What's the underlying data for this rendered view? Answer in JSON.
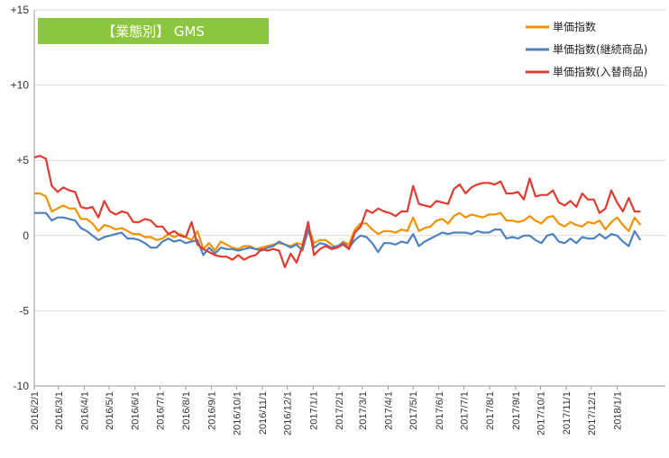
{
  "chart_data": {
    "type": "line",
    "title": "【業態別】 GMS",
    "xlabel": "",
    "ylabel": "",
    "ylim": [
      -10,
      15
    ],
    "yticks": [
      {
        "value": 15,
        "label": "+15"
      },
      {
        "value": 10,
        "label": "+10"
      },
      {
        "value": 5,
        "label": "+5"
      },
      {
        "value": 0,
        "label": "0"
      },
      {
        "value": -5,
        "label": "-5"
      },
      {
        "value": -10,
        "label": "-10"
      }
    ],
    "xlim": [
      "2016-02-01",
      "2018-02-28"
    ],
    "x_tick_labels": [
      "2016/2/1",
      "2016/3/1",
      "2016/4/1",
      "2016/5/1",
      "2016/6/1",
      "2016/7/1",
      "2016/8/1",
      "2016/9/1",
      "2016/10/1",
      "2016/11/1",
      "2016/12/1",
      "2017/1/1",
      "2017/2/1",
      "2017/3/1",
      "2017/4/1",
      "2017/5/1",
      "2017/6/1",
      "2017/7/1",
      "2017/8/1",
      "2017/9/1",
      "2017/10/1",
      "2017/11/1",
      "2017/12/1",
      "2018/1/1"
    ],
    "grid": "horizontal",
    "legend": "top-right",
    "series_start": "2016-02-01",
    "series_interval": "weekly",
    "series": [
      {
        "name": "単価指数",
        "color": "#F39200",
        "values": [
          2.8,
          2.8,
          2.6,
          1.6,
          1.8,
          2.0,
          1.8,
          1.8,
          1.1,
          1.1,
          0.8,
          0.3,
          0.7,
          0.6,
          0.4,
          0.5,
          0.3,
          0.1,
          0.1,
          -0.1,
          -0.1,
          -0.3,
          -0.2,
          0.1,
          -0.1,
          0.1,
          -0.1,
          -0.3,
          0.3,
          -0.9,
          -0.5,
          -1.0,
          -0.4,
          -0.6,
          -0.8,
          -0.9,
          -0.7,
          -0.7,
          -0.9,
          -0.8,
          -0.7,
          -0.6,
          -0.5,
          -0.6,
          -0.7,
          -0.5,
          -0.6,
          0.6,
          -0.5,
          -0.3,
          -0.3,
          -0.6,
          -0.8,
          -0.4,
          -0.6,
          0.4,
          0.8,
          0.8,
          0.4,
          0.1,
          0.3,
          0.3,
          0.2,
          0.4,
          0.3,
          1.2,
          0.3,
          0.5,
          0.6,
          1.0,
          1.1,
          0.8,
          1.3,
          1.5,
          1.2,
          1.4,
          1.3,
          1.2,
          1.4,
          1.4,
          1.5,
          1.0,
          1.0,
          0.9,
          1.0,
          1.3,
          1.0,
          0.8,
          1.2,
          1.3,
          0.8,
          0.6,
          0.9,
          0.7,
          0.6,
          0.9,
          0.8,
          1.0,
          0.4,
          0.9,
          1.2,
          0.7,
          0.3,
          1.2,
          0.7
        ]
      },
      {
        "name": "単価指数(継続商品)",
        "color": "#4F81BD",
        "values": [
          1.5,
          1.5,
          1.5,
          1.0,
          1.2,
          1.2,
          1.1,
          1.0,
          0.5,
          0.3,
          0.0,
          -0.3,
          -0.1,
          0.0,
          0.1,
          0.2,
          -0.2,
          -0.2,
          -0.3,
          -0.5,
          -0.8,
          -0.8,
          -0.4,
          -0.2,
          -0.4,
          -0.3,
          -0.5,
          -0.4,
          -0.3,
          -1.3,
          -0.8,
          -1.2,
          -0.8,
          -0.9,
          -0.9,
          -1.0,
          -0.9,
          -0.8,
          -0.9,
          -1.0,
          -0.8,
          -0.7,
          -0.4,
          -0.6,
          -0.8,
          -0.6,
          -1.0,
          0.4,
          -0.8,
          -0.5,
          -0.6,
          -0.8,
          -0.7,
          -0.5,
          -0.8,
          -0.3,
          0.0,
          -0.1,
          -0.5,
          -1.1,
          -0.5,
          -0.5,
          -0.6,
          -0.4,
          -0.5,
          0.1,
          -0.7,
          -0.4,
          -0.2,
          0.0,
          0.2,
          0.1,
          0.2,
          0.2,
          0.2,
          0.1,
          0.3,
          0.2,
          0.2,
          0.4,
          0.4,
          -0.2,
          -0.1,
          -0.2,
          0.0,
          0.0,
          -0.3,
          -0.5,
          0.0,
          0.1,
          -0.4,
          -0.5,
          -0.2,
          -0.5,
          -0.1,
          -0.2,
          -0.2,
          0.1,
          -0.2,
          0.1,
          0.0,
          -0.4,
          -0.7,
          0.3,
          -0.3
        ]
      },
      {
        "name": "単価指数(入替商品)",
        "color": "#E03C31",
        "values": [
          5.2,
          5.3,
          5.1,
          3.3,
          2.9,
          3.2,
          3.0,
          2.9,
          1.9,
          1.8,
          1.9,
          1.2,
          2.3,
          1.6,
          1.4,
          1.6,
          1.5,
          0.9,
          0.9,
          1.1,
          1.0,
          0.6,
          0.6,
          0.1,
          0.3,
          0.0,
          -0.1,
          0.9,
          -0.6,
          -0.9,
          -1.1,
          -1.3,
          -1.4,
          -1.4,
          -1.6,
          -1.3,
          -1.6,
          -1.4,
          -1.3,
          -0.9,
          -1.0,
          -0.9,
          -1.0,
          -2.1,
          -1.2,
          -1.8,
          -0.7,
          0.9,
          -1.3,
          -0.9,
          -0.7,
          -0.9,
          -0.8,
          -0.6,
          -0.9,
          0.2,
          0.6,
          1.7,
          1.5,
          1.8,
          1.6,
          1.5,
          1.3,
          1.6,
          1.6,
          3.3,
          2.1,
          2.0,
          1.9,
          2.3,
          2.2,
          2.1,
          3.1,
          3.4,
          2.8,
          3.2,
          3.4,
          3.5,
          3.5,
          3.4,
          3.6,
          2.8,
          2.8,
          2.9,
          2.4,
          3.8,
          2.6,
          2.7,
          2.7,
          3.0,
          2.2,
          2.0,
          2.3,
          1.9,
          2.8,
          2.4,
          2.4,
          1.5,
          1.8,
          3.0,
          2.2,
          1.6,
          2.5,
          1.6,
          1.6
        ]
      }
    ]
  }
}
